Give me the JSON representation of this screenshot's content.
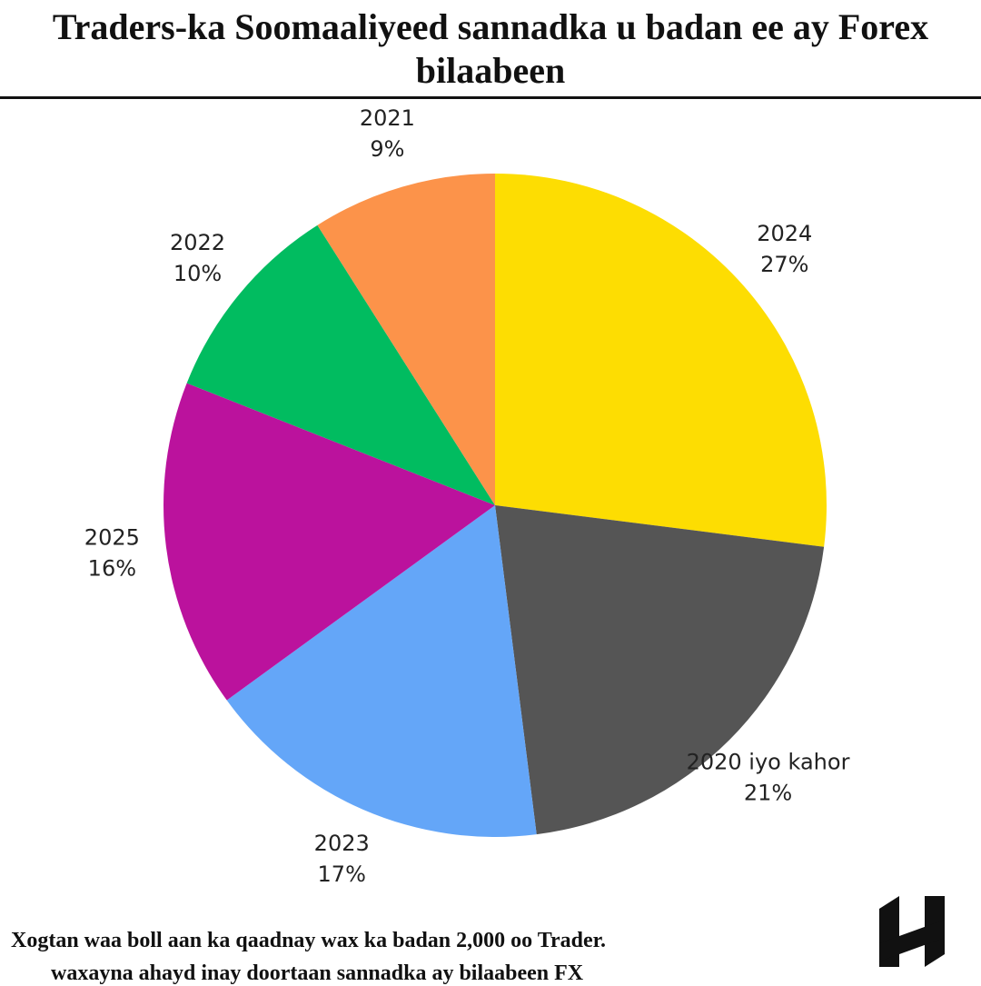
{
  "chart_data": {
    "type": "pie",
    "title": "Traders-ka Soomaaliyeed sannadka u badan ee ay Forex bilaabeen",
    "categories": [
      "2024",
      "2020 iyo kahor",
      "2023",
      "2025",
      "2022",
      "2021"
    ],
    "values": [
      27,
      21,
      17,
      16,
      10,
      9
    ],
    "value_labels": [
      "27%",
      "21%",
      "17%",
      "16%",
      "10%",
      "9%"
    ],
    "colors": [
      "#fddd02",
      "#555555",
      "#64a6f8",
      "#bb129d",
      "#01bc60",
      "#fc934a"
    ],
    "notes": [
      "Xogtan waa boll aan ka qaadnay wax ka badan 2,000 oo Trader.",
      "waxayna ahayd inay doortaan sannadka ay bilaabeen FX"
    ]
  }
}
